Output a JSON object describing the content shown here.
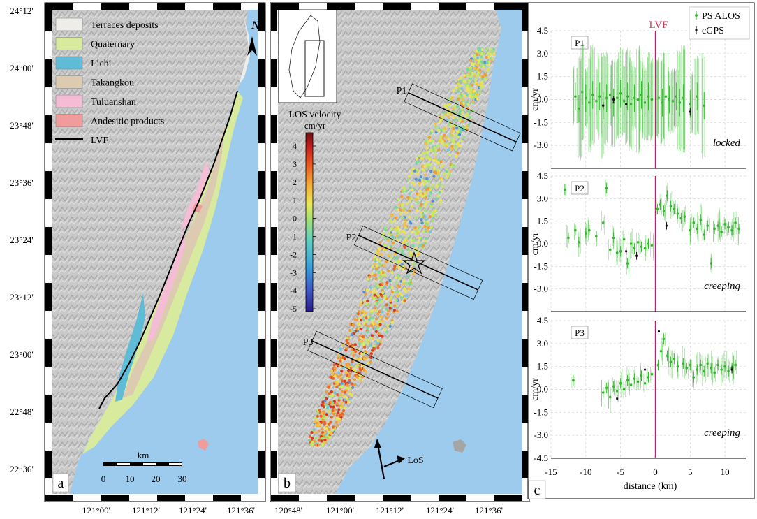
{
  "figure": {
    "map_axes": {
      "lat_labels": [
        "24°12'",
        "24°00'",
        "23°48'",
        "23°36'",
        "23°24'",
        "23°12'",
        "23°00'",
        "22°48'",
        "22°36'"
      ],
      "lon_labels_a": [
        "121°00'",
        "121°12'",
        "121°24'",
        "121°36'"
      ],
      "lon_labels_b": [
        "120°48'",
        "121°00'",
        "121°12'",
        "121°24'",
        "121°36'"
      ]
    },
    "panel_a": {
      "label": "a",
      "north": "N",
      "legend": [
        {
          "label": "Terraces deposits",
          "color": "#efedea"
        },
        {
          "label": "Quaternary",
          "color": "#d7ea9e"
        },
        {
          "label": "Lichi",
          "color": "#5fbcd6"
        },
        {
          "label": "Takangkou",
          "color": "#dccbb0"
        },
        {
          "label": "Tuluanshan",
          "color": "#f5bcd6"
        },
        {
          "label": "Andesitic products",
          "color": "#f09c9c"
        },
        {
          "label": "LVF",
          "color": "#000000"
        }
      ],
      "scalebar": {
        "unit": "km",
        "ticks": [
          "0",
          "10",
          "20",
          "30"
        ]
      }
    },
    "panel_b": {
      "label": "b",
      "colorbar_title": "LOS velocity",
      "colorbar_unit": "cm/yr",
      "colorbar_ticks": [
        "4",
        "3",
        "2",
        "1",
        "0",
        "-1",
        "-2",
        "-3",
        "-4",
        "-5"
      ],
      "profiles": [
        "P1",
        "P2",
        "P3"
      ],
      "los_label": "LoS"
    },
    "panel_c": {
      "label": "c",
      "fault_label": "LVF",
      "legend": [
        "PS ALOS",
        "cGPS"
      ],
      "ylabel": "cm/yr",
      "xlabel": "distance (km)",
      "xticks": [
        "-15",
        "-10",
        "-5",
        "0",
        "5",
        "10"
      ],
      "yticks": [
        "4.5",
        "3.0",
        "1.5",
        "0.0",
        "-1.5",
        "-3.0",
        "-4.5"
      ],
      "profiles": [
        {
          "name": "P1",
          "state": "locked"
        },
        {
          "name": "P2",
          "state": "creeping"
        },
        {
          "name": "P3",
          "state": "creeping"
        }
      ]
    }
  },
  "chart_data": {
    "type": "scatter",
    "xlabel": "distance (km)",
    "ylabel": "cm/yr",
    "xlim": [
      -15,
      13
    ],
    "ylim": [
      -4.5,
      4.5
    ],
    "fault_x": 0,
    "series_colors": {
      "PS ALOS": "#35b82e",
      "cGPS": "#111111",
      "LVF": "#c0206a"
    },
    "profiles": [
      {
        "name": "P1",
        "state": "locked",
        "ps_alos": [
          [
            -11.5,
            0.2
          ],
          [
            -11,
            -0.6
          ],
          [
            -10.5,
            0.5
          ],
          [
            -10,
            0.1
          ],
          [
            -9.5,
            -0.2
          ],
          [
            -9,
            0.3
          ],
          [
            -8.5,
            -0.1
          ],
          [
            -8,
            0.2
          ],
          [
            -7.5,
            -0.4
          ],
          [
            -7,
            0.1
          ],
          [
            -6.5,
            0.3
          ],
          [
            -6,
            -0.2
          ],
          [
            -5.5,
            0.1
          ],
          [
            -5,
            0.4
          ],
          [
            -4.5,
            -0.1
          ],
          [
            -4,
            0.2
          ],
          [
            -3.5,
            -0.3
          ],
          [
            -3,
            0.1
          ],
          [
            -2.5,
            0.0
          ],
          [
            -2,
            0.3
          ],
          [
            -1.5,
            -0.2
          ],
          [
            -1,
            0.2
          ],
          [
            -0.5,
            0.0
          ],
          [
            0.5,
            0.1
          ],
          [
            1,
            -0.2
          ],
          [
            1.5,
            0.2
          ],
          [
            2,
            0.0
          ],
          [
            2.5,
            -0.1
          ],
          [
            3,
            0.2
          ],
          [
            3.5,
            -0.2
          ],
          [
            4,
            0.1
          ],
          [
            5,
            -0.3
          ],
          [
            6,
            0.2
          ],
          [
            7,
            -0.4
          ]
        ],
        "cgps": [
          [
            -7.5,
            -0.4
          ],
          [
            -6,
            0.0
          ],
          [
            -4.2,
            -0.3
          ],
          [
            5,
            -0.8
          ]
        ]
      },
      {
        "name": "P2",
        "state": "creeping",
        "ps_alos": [
          [
            -13,
            3.6
          ],
          [
            -12.5,
            0.4
          ],
          [
            -11.5,
            0.9
          ],
          [
            -11,
            0.1
          ],
          [
            -10,
            0.7
          ],
          [
            -9.5,
            0.9
          ],
          [
            -8.5,
            0.5
          ],
          [
            -7.5,
            1.4
          ],
          [
            -7,
            3.7
          ],
          [
            -6.5,
            -0.4
          ],
          [
            -6,
            0.4
          ],
          [
            -5.5,
            -0.6
          ],
          [
            -5,
            -0.5
          ],
          [
            -4.5,
            0.3
          ],
          [
            -4,
            -1.3
          ],
          [
            -3.5,
            0.0
          ],
          [
            -3,
            -0.3
          ],
          [
            -2.5,
            0.1
          ],
          [
            -2,
            -0.2
          ],
          [
            -1.5,
            -0.3
          ],
          [
            -1,
            0.0
          ],
          [
            -0.5,
            -0.1
          ],
          [
            0.3,
            2.3
          ],
          [
            0.7,
            2.6
          ],
          [
            1.2,
            2.2
          ],
          [
            1.7,
            3.2
          ],
          [
            2.2,
            2.5
          ],
          [
            2.7,
            2.3
          ],
          [
            3.2,
            2.0
          ],
          [
            3.7,
            1.7
          ],
          [
            4.2,
            1.8
          ],
          [
            5,
            0.9
          ],
          [
            5.5,
            1.4
          ],
          [
            6,
            1.0
          ],
          [
            6.5,
            1.6
          ],
          [
            7,
            0.6
          ],
          [
            7.5,
            1.2
          ],
          [
            8,
            -1.3
          ],
          [
            8.5,
            1.0
          ],
          [
            9,
            1.2
          ],
          [
            9.5,
            0.8
          ],
          [
            10,
            1.3
          ],
          [
            10.5,
            1.1
          ],
          [
            11,
            0.9
          ],
          [
            11.5,
            1.4
          ],
          [
            12,
            1.0
          ]
        ],
        "cgps": [
          [
            -4.2,
            -0.5
          ],
          [
            -2.7,
            -0.8
          ],
          [
            1.6,
            1.2
          ]
        ]
      },
      {
        "name": "P3",
        "state": "creeping",
        "ps_alos": [
          [
            -11.8,
            0.6
          ],
          [
            -7.5,
            -0.2
          ],
          [
            -7,
            0.1
          ],
          [
            -6.5,
            -0.5
          ],
          [
            -6,
            0.2
          ],
          [
            -5.5,
            -0.1
          ],
          [
            -5,
            0.4
          ],
          [
            -4.5,
            0.0
          ],
          [
            -4,
            0.6
          ],
          [
            -3.5,
            0.3
          ],
          [
            -3,
            0.7
          ],
          [
            -2.5,
            0.5
          ],
          [
            -2,
            0.9
          ],
          [
            -1.5,
            0.4
          ],
          [
            -1,
            0.8
          ],
          [
            -0.5,
            1.0
          ],
          [
            0.4,
            1.6
          ],
          [
            0.8,
            2.5
          ],
          [
            1.2,
            3.3
          ],
          [
            1.7,
            2.2
          ],
          [
            2.2,
            1.8
          ],
          [
            2.7,
            2.0
          ],
          [
            3.2,
            1.5
          ],
          [
            4,
            1.7
          ],
          [
            4.5,
            1.4
          ],
          [
            5,
            1.6
          ],
          [
            5.5,
            0.8
          ],
          [
            6,
            1.3
          ],
          [
            6.5,
            1.6
          ],
          [
            7,
            1.2
          ],
          [
            7.5,
            1.7
          ],
          [
            8,
            1.4
          ],
          [
            8.5,
            1.1
          ],
          [
            9,
            1.6
          ],
          [
            9.5,
            1.3
          ],
          [
            10,
            1.5
          ],
          [
            10.5,
            1.2
          ],
          [
            11,
            1.4
          ],
          [
            11.5,
            1.6
          ]
        ],
        "cgps": [
          [
            -5.5,
            -0.6
          ],
          [
            -1.5,
            1.3
          ],
          [
            0.5,
            3.8
          ],
          [
            11,
            1.3
          ]
        ]
      }
    ]
  }
}
